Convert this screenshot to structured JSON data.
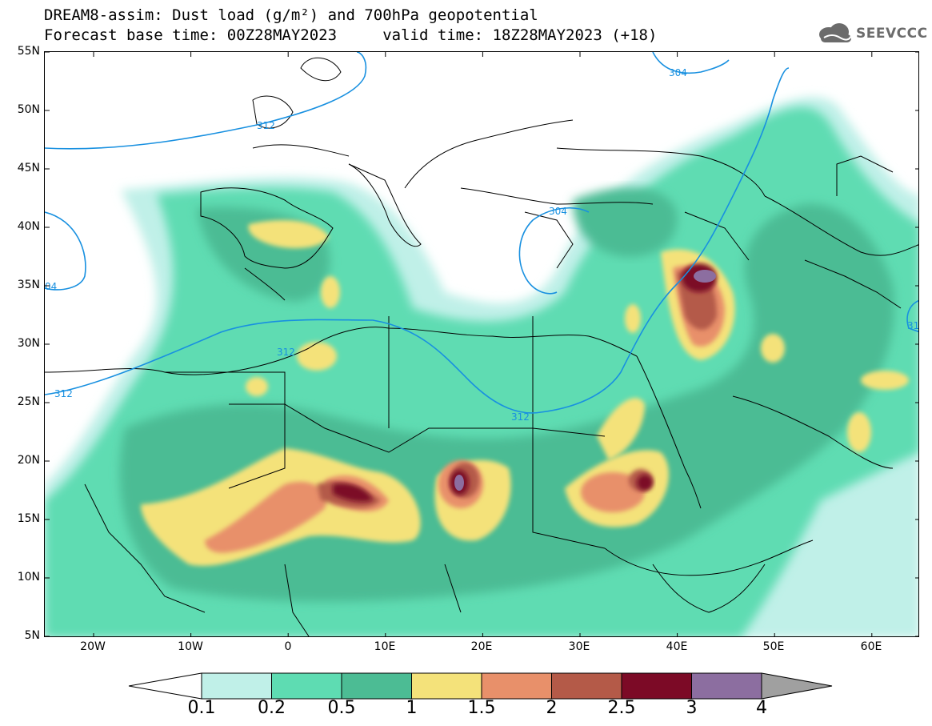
{
  "title": {
    "line1": "DREAM8-assim: Dust load (g/m²) and 700hPa geopotential",
    "line2": "Forecast base time: 00Z28MAY2023     valid time: 18Z28MAY2023 (+18)"
  },
  "logo": {
    "text": "SEEVCCC",
    "icon": "cloud-icon"
  },
  "map": {
    "lat_labels": [
      "55N",
      "50N",
      "45N",
      "40N",
      "35N",
      "30N",
      "25N",
      "20N",
      "15N",
      "10N",
      "5N"
    ],
    "lon_labels": [
      "20W",
      "10W",
      "0",
      "10E",
      "20E",
      "30E",
      "40E",
      "50E",
      "60E"
    ],
    "geopotential_contour_labels": [
      "304",
      "312",
      "304",
      "312",
      "312",
      "312",
      "04",
      "31"
    ]
  },
  "legend": {
    "tick_labels": [
      "0.1",
      "0.2",
      "0.5",
      "1",
      "1.5",
      "2",
      "2.5",
      "3",
      "4"
    ],
    "colors": [
      "#c0f0e8",
      "#5edcb2",
      "#4cbc94",
      "#f4e27a",
      "#e8906a",
      "#b45a48",
      "#7c0a26",
      "#8c6ea0"
    ],
    "under_color": "#ffffff",
    "over_color": "#a0a0a0"
  },
  "colors": {
    "light": "#c0f0e8",
    "mid": "#5edcb2",
    "dark": "#4cbc94",
    "yellow": "#f4e27a",
    "orange": "#e8906a",
    "rust": "#b45a48",
    "maroon": "#7c0a26",
    "purple": "#8c6ea0",
    "contour": "#1890e0"
  }
}
